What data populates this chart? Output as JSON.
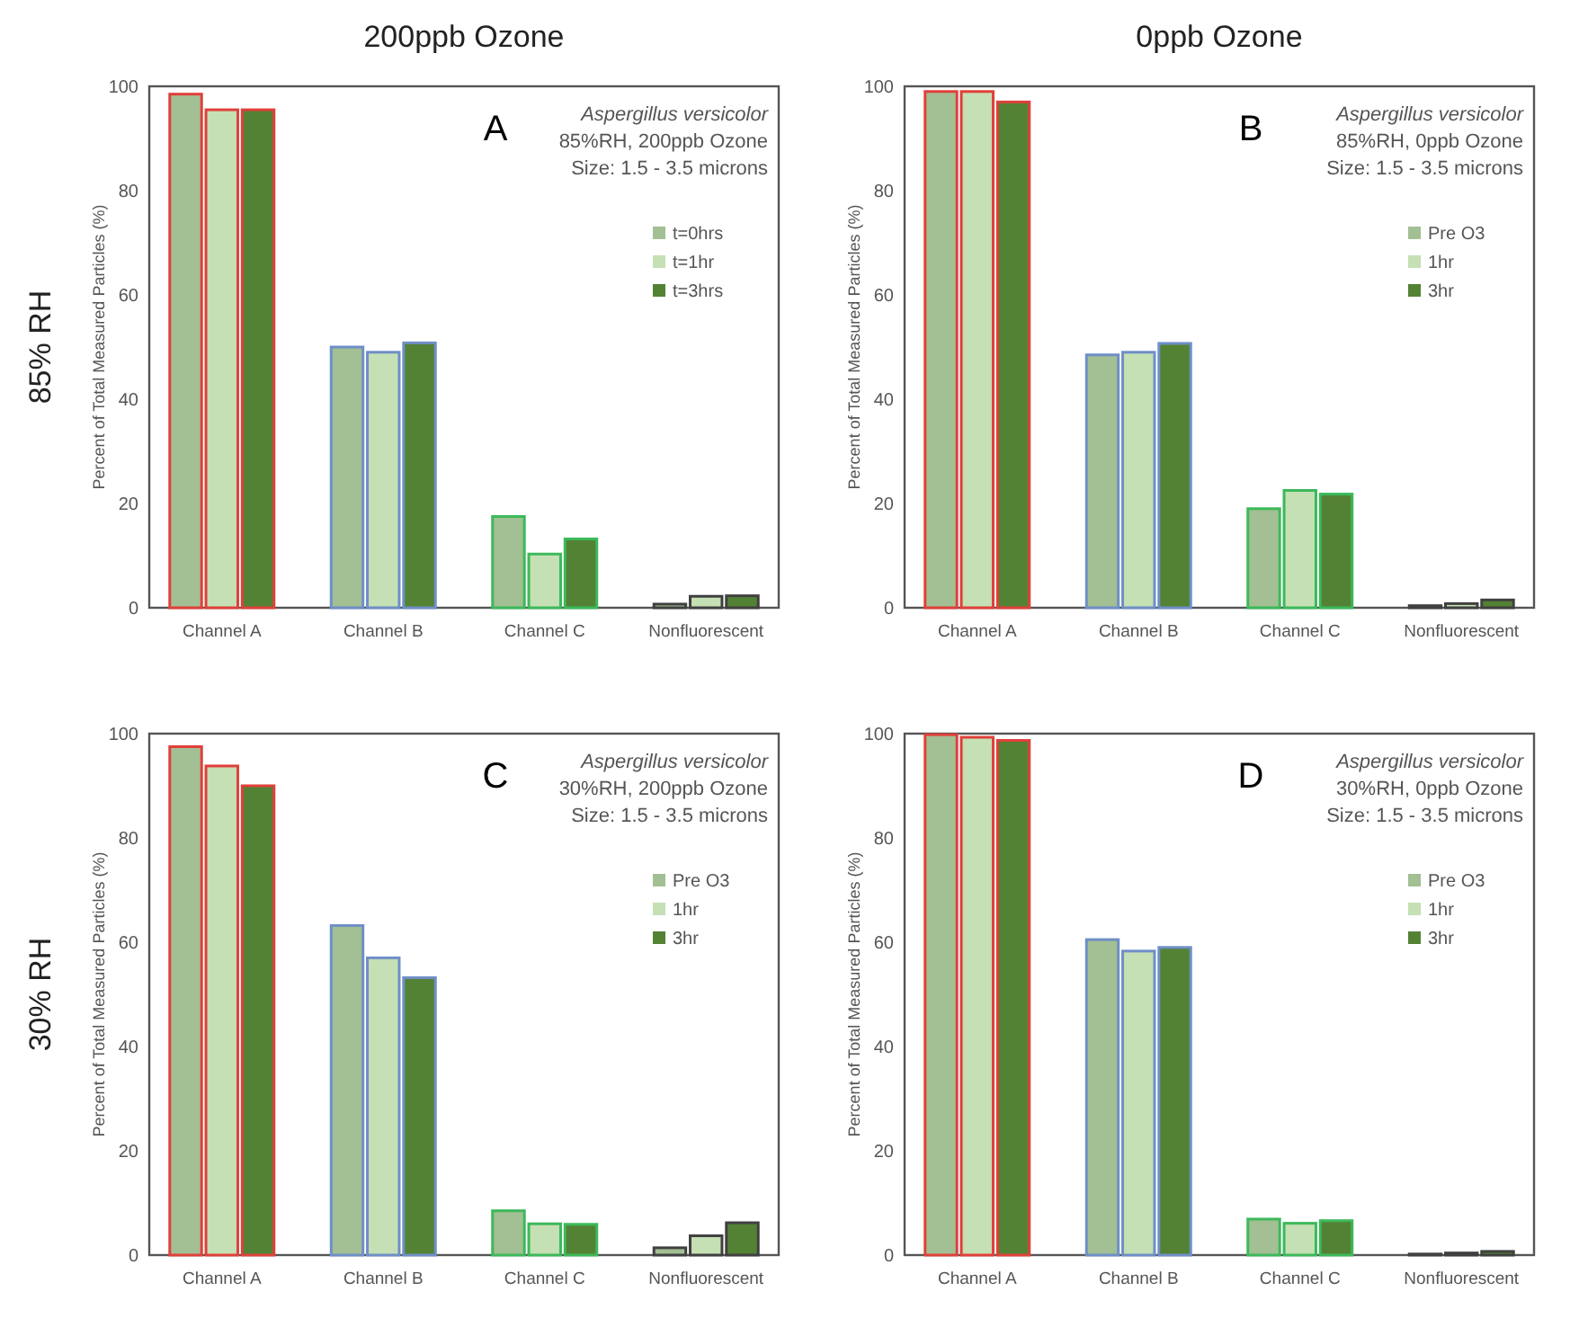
{
  "chart_data": [
    {
      "type": "bar",
      "title": "200ppb Ozone",
      "ylabel": "Percent of Total Measured Particles (%)",
      "categories": [
        "Channel A",
        "Channel B",
        "Channel C",
        "Nonfluorescent"
      ],
      "ylim": [
        0,
        100
      ],
      "yticks": [
        0,
        20,
        40,
        60,
        80,
        100
      ],
      "legend": "top right",
      "grid": false,
      "annotations": [
        "A",
        "Aspergillus versicolor",
        "85%RH, 200ppb Ozone",
        "Size: 1.5 - 3.5 microns",
        "85% RH"
      ],
      "series": [
        {
          "name": "t=0hrs",
          "color": "#a3bf94",
          "values": [
            98.5,
            50,
            17.5,
            0.7
          ]
        },
        {
          "name": "t=1hr",
          "color": "#c5e0b4",
          "values": [
            95.5,
            49,
            10.3,
            2.2
          ]
        },
        {
          "name": "t=3hrs",
          "color": "#548235",
          "values": [
            95.5,
            50.8,
            13.2,
            2.3
          ]
        }
      ]
    },
    {
      "type": "bar",
      "title": "0ppb Ozone",
      "ylabel": "Percent of Total Measured Particles (%)",
      "categories": [
        "Channel A",
        "Channel B",
        "Channel C",
        "Nonfluorescent"
      ],
      "ylim": [
        0,
        100
      ],
      "yticks": [
        0,
        20,
        40,
        60,
        80,
        100
      ],
      "legend": "top right",
      "grid": false,
      "annotations": [
        "B",
        "Aspergillus versicolor",
        "85%RH, 0ppb Ozone",
        "Size: 1.5 - 3.5 microns"
      ],
      "series": [
        {
          "name": "Pre O3",
          "color": "#a3bf94",
          "values": [
            99,
            48.5,
            19,
            0.4
          ]
        },
        {
          "name": "1hr",
          "color": "#c5e0b4",
          "values": [
            99,
            49,
            22.5,
            0.8
          ]
        },
        {
          "name": "3hr",
          "color": "#548235",
          "values": [
            97,
            50.7,
            21.8,
            1.5
          ]
        }
      ]
    },
    {
      "type": "bar",
      "ylabel": "Percent of Total Measured Particles (%)",
      "categories": [
        "Channel A",
        "Channel B",
        "Channel C",
        "Nonfluorescent"
      ],
      "ylim": [
        0,
        100
      ],
      "yticks": [
        0,
        20,
        40,
        60,
        80,
        100
      ],
      "legend": "top right",
      "grid": false,
      "annotations": [
        "C",
        "Aspergillus versicolor",
        "30%RH, 200ppb Ozone",
        "Size: 1.5 - 3.5 microns",
        "30% RH"
      ],
      "series": [
        {
          "name": "Pre O3",
          "color": "#a3bf94",
          "values": [
            97.5,
            63.2,
            8.5,
            1.4
          ]
        },
        {
          "name": "1hr",
          "color": "#c5e0b4",
          "values": [
            93.8,
            57,
            6,
            3.7
          ]
        },
        {
          "name": "3hr",
          "color": "#548235",
          "values": [
            90,
            53.2,
            5.9,
            6.2
          ]
        }
      ]
    },
    {
      "type": "bar",
      "ylabel": "Percent of Total Measured Particles (%)",
      "categories": [
        "Channel A",
        "Channel B",
        "Channel C",
        "Nonfluorescent"
      ],
      "ylim": [
        0,
        100
      ],
      "yticks": [
        0,
        20,
        40,
        60,
        80,
        100
      ],
      "legend": "top right",
      "grid": false,
      "annotations": [
        "D",
        "Aspergillus versicolor",
        "30%RH, 0ppb Ozone",
        "Size: 1.5 - 3.5 microns"
      ],
      "series": [
        {
          "name": "Pre O3",
          "color": "#a3bf94",
          "values": [
            99.8,
            60.5,
            6.9,
            0.2
          ]
        },
        {
          "name": "1hr",
          "color": "#c5e0b4",
          "values": [
            99.3,
            58.3,
            6.1,
            0.4
          ]
        },
        {
          "name": "3hr",
          "color": "#548235",
          "values": [
            98.7,
            59,
            6.6,
            0.7
          ]
        }
      ]
    }
  ]
}
